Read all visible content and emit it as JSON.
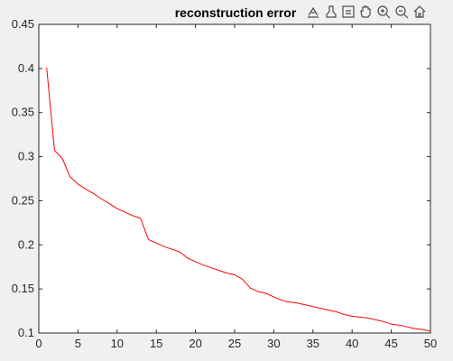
{
  "chart_data": {
    "type": "line",
    "title": "reconstruction error",
    "xlabel": "",
    "ylabel": "",
    "xlim": [
      0,
      50
    ],
    "ylim": [
      0.1,
      0.45
    ],
    "xticks": [
      0,
      5,
      10,
      15,
      20,
      25,
      30,
      35,
      40,
      45,
      50
    ],
    "yticks": [
      0.1,
      0.15,
      0.2,
      0.25,
      0.3,
      0.35,
      0.4,
      0.45
    ],
    "xtick_labels": [
      "0",
      "5",
      "10",
      "15",
      "20",
      "25",
      "30",
      "35",
      "40",
      "45",
      "50"
    ],
    "ytick_labels": [
      "0.1",
      "0.15",
      "0.2",
      "0.25",
      "0.3",
      "0.35",
      "0.4",
      "0.45"
    ],
    "grid": false,
    "series": [
      {
        "color": "#ff0000",
        "x": [
          1,
          2,
          3,
          4,
          5,
          6,
          7,
          8,
          9,
          10,
          11,
          12,
          13,
          14,
          15,
          16,
          17,
          18,
          19,
          20,
          21,
          22,
          23,
          24,
          25,
          26,
          27,
          28,
          29,
          30,
          31,
          32,
          33,
          34,
          35,
          36,
          37,
          38,
          39,
          40,
          41,
          42,
          43,
          44,
          45,
          46,
          47,
          48,
          49,
          50
        ],
        "values": [
          0.401,
          0.307,
          0.298,
          0.277,
          0.269,
          0.263,
          0.258,
          0.252,
          0.247,
          0.241,
          0.237,
          0.233,
          0.23,
          0.206,
          0.202,
          0.198,
          0.195,
          0.192,
          0.185,
          0.181,
          0.177,
          0.174,
          0.171,
          0.168,
          0.166,
          0.161,
          0.151,
          0.147,
          0.145,
          0.141,
          0.137,
          0.135,
          0.134,
          0.132,
          0.13,
          0.128,
          0.126,
          0.124,
          0.121,
          0.119,
          0.118,
          0.117,
          0.115,
          0.113,
          0.11,
          0.109,
          0.107,
          0.105,
          0.104,
          0.102
        ]
      }
    ]
  },
  "toolbar": {
    "icons": [
      "data-tips-icon",
      "brush-icon",
      "linked-plot-icon",
      "pan-hand-icon",
      "zoom-in-icon",
      "zoom-out-icon",
      "home-icon"
    ]
  },
  "colors": {
    "background": "#f0f0f0",
    "axes_background": "#ffffff",
    "line": "#ff0000",
    "axis": "#262626"
  }
}
